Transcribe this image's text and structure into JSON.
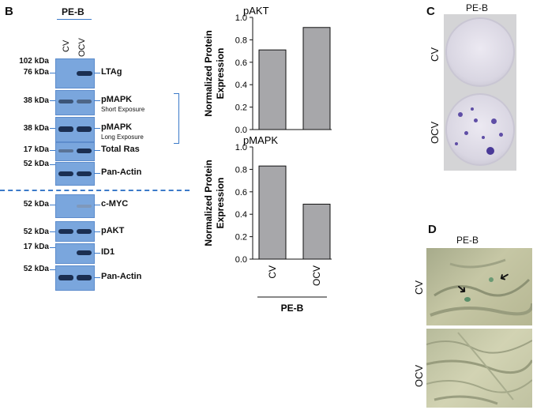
{
  "panels": {
    "B": {
      "letter": "B",
      "cell_line": "PE-B",
      "lanes": [
        "CV",
        "OCV"
      ],
      "rows": [
        {
          "kda": [
            "102 kDa",
            "76 kDa"
          ],
          "label": "LTAg",
          "sub": ""
        },
        {
          "kda": [
            "38 kDa"
          ],
          "label": "pMAPK",
          "sub": "Short Exposure"
        },
        {
          "kda": [
            "38 kDa"
          ],
          "label": "pMAPK",
          "sub": "Long Exposure"
        },
        {
          "kda": [
            "17 kDa"
          ],
          "label": "Total Ras",
          "sub": ""
        },
        {
          "kda": [
            "52 kDa"
          ],
          "label": "Pan-Actin",
          "sub": ""
        },
        {
          "kda": [
            "52 kDa"
          ],
          "label": "c-MYC",
          "sub": ""
        },
        {
          "kda": [
            "52 kDa"
          ],
          "label": "pAKT",
          "sub": ""
        },
        {
          "kda": [
            "17 kDa"
          ],
          "label": "ID1",
          "sub": ""
        },
        {
          "kda": [
            "52 kDa"
          ],
          "label": "Pan-Actin",
          "sub": ""
        }
      ]
    },
    "C": {
      "letter": "C",
      "cell_line": "PE-B",
      "rows": [
        "CV",
        "OCV"
      ]
    },
    "D": {
      "letter": "D",
      "cell_line": "PE-B",
      "rows": [
        "CV",
        "OCV"
      ]
    }
  },
  "chart_data": [
    {
      "type": "bar",
      "title": "pAKT",
      "ylabel": "Normalized Protein Expression",
      "categories": [
        "CV",
        "OCV"
      ],
      "values": [
        0.71,
        0.91
      ],
      "ylim": [
        0,
        1.0
      ],
      "yticks": [
        "0.0",
        "0.2",
        "0.4",
        "0.6",
        "0.8",
        "1.0"
      ],
      "bar_color": "#a7a7aa"
    },
    {
      "type": "bar",
      "title": "pMAPK",
      "ylabel": "Normalized Protein Expression",
      "categories": [
        "CV",
        "OCV"
      ],
      "values": [
        0.83,
        0.49
      ],
      "ylim": [
        0,
        1.0
      ],
      "yticks": [
        "0.0",
        "0.2",
        "0.4",
        "0.6",
        "0.8",
        "1.0"
      ],
      "xgroup": "PE-B",
      "bar_color": "#a7a7aa"
    }
  ]
}
